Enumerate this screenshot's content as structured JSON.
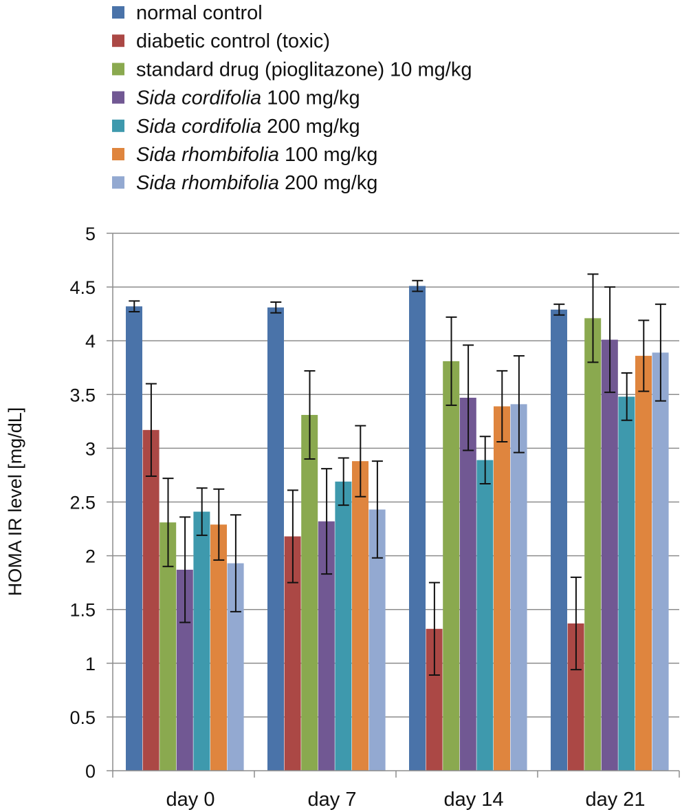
{
  "chart_data": {
    "type": "bar",
    "title": "",
    "xlabel": "",
    "ylabel": "HOMA IR level [mg/dL]",
    "ylim": [
      0,
      5
    ],
    "yticks": [
      0,
      0.5,
      1,
      1.5,
      2,
      2.5,
      3,
      3.5,
      4,
      4.5,
      5
    ],
    "grid": "horizontal",
    "legend_position": "top-left",
    "categories": [
      "day 0",
      "day 7",
      "day 14",
      "day 21"
    ],
    "series": [
      {
        "name": "normal control",
        "name_parts": [
          {
            "text": "normal control",
            "italic": false
          }
        ],
        "color": "#4a73a9",
        "values": [
          4.32,
          4.31,
          4.51,
          4.29
        ],
        "errors": [
          0.05,
          0.05,
          0.05,
          0.05
        ]
      },
      {
        "name": "diabetic control (toxic)",
        "name_parts": [
          {
            "text": "diabetic control (toxic)",
            "italic": false
          }
        ],
        "color": "#ab4845",
        "values": [
          3.17,
          2.18,
          1.32,
          1.37
        ],
        "errors": [
          0.43,
          0.43,
          0.43,
          0.43
        ]
      },
      {
        "name": "standard drug (pioglitazone) 10 mg/kg",
        "name_parts": [
          {
            "text": "standard drug (pioglitazone) 10 mg/kg",
            "italic": false
          }
        ],
        "color": "#8aa94f",
        "values": [
          2.31,
          3.31,
          3.81,
          4.21
        ],
        "errors": [
          0.41,
          0.41,
          0.41,
          0.41
        ]
      },
      {
        "name": "Sida cordifolia 100 mg/kg",
        "name_parts": [
          {
            "text": "Sida cordifolia",
            "italic": true
          },
          {
            "text": " 100 mg/kg",
            "italic": false
          }
        ],
        "color": "#715893",
        "values": [
          1.87,
          2.32,
          3.47,
          4.01
        ],
        "errors": [
          0.49,
          0.49,
          0.49,
          0.49
        ]
      },
      {
        "name": "Sida cordifolia 200 mg/kg",
        "name_parts": [
          {
            "text": "Sida cordifolia",
            "italic": true
          },
          {
            "text": " 200 mg/kg",
            "italic": false
          }
        ],
        "color": "#3e99ad",
        "values": [
          2.41,
          2.69,
          2.89,
          3.48
        ],
        "errors": [
          0.22,
          0.22,
          0.22,
          0.22
        ]
      },
      {
        "name": "Sida rhombifolia 100 mg/kg",
        "name_parts": [
          {
            "text": "Sida rhombifolia",
            "italic": true
          },
          {
            "text": " 100 mg/kg",
            "italic": false
          }
        ],
        "color": "#df853e",
        "values": [
          2.29,
          2.88,
          3.39,
          3.86
        ],
        "errors": [
          0.33,
          0.33,
          0.33,
          0.33
        ]
      },
      {
        "name": "Sida rhombifolia 200 mg/kg",
        "name_parts": [
          {
            "text": "Sida rhombifolia",
            "italic": true
          },
          {
            "text": " 200 mg/kg",
            "italic": false
          }
        ],
        "color": "#93a9d1",
        "values": [
          1.93,
          2.43,
          3.41,
          3.89
        ],
        "errors": [
          0.45,
          0.45,
          0.45,
          0.45
        ]
      }
    ]
  }
}
